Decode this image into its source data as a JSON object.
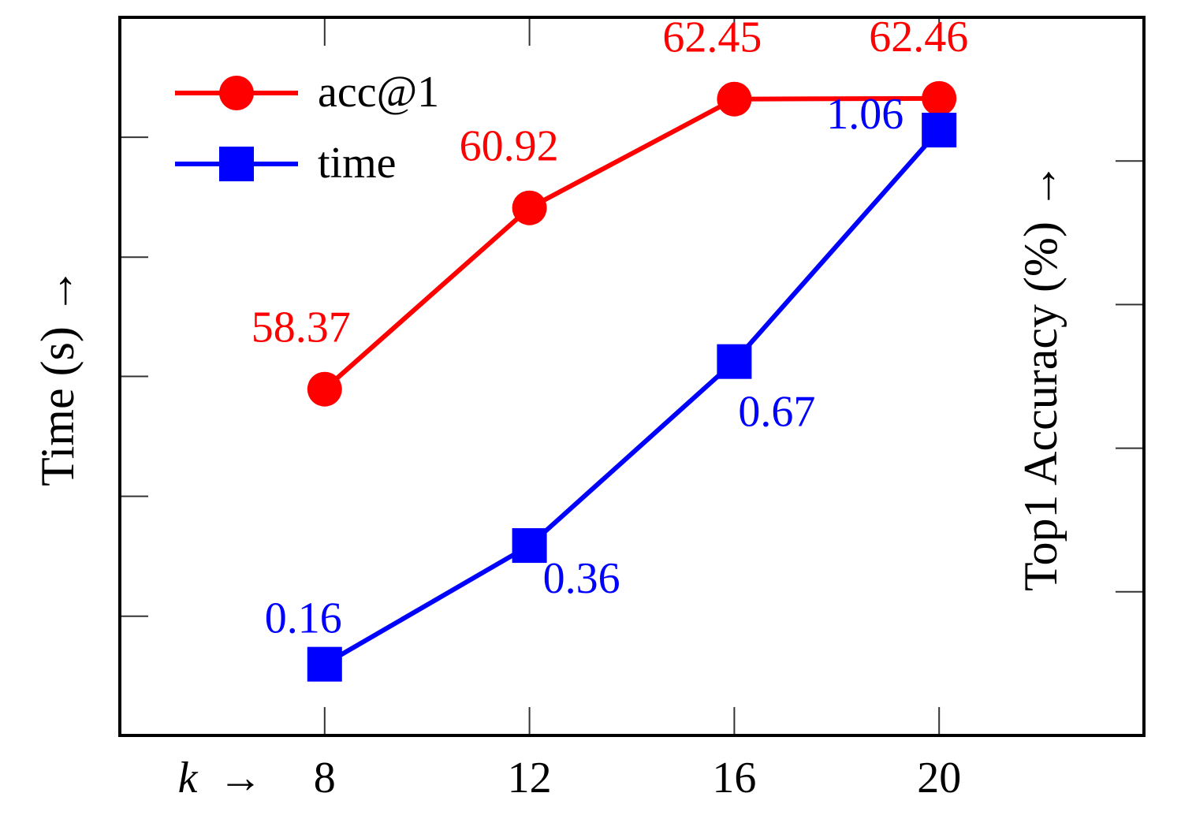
{
  "chart_data": {
    "type": "line",
    "x": [
      8,
      12,
      16,
      20
    ],
    "xlabel_var": "k",
    "xlabel_arrow": "→",
    "ylabel_left": "Time (s) →",
    "ylabel_right": "Top1 Accuracy (%) →",
    "xlim": [
      4,
      24
    ],
    "grid": false,
    "legend_position": "top-left",
    "series": [
      {
        "name": "acc@1",
        "axis": "right",
        "color": "#ff0000",
        "marker": "circle",
        "values": [
          58.37,
          60.92,
          62.45,
          62.46
        ],
        "labels": [
          "58.37",
          "60.92",
          "62.45",
          "62.46"
        ],
        "ylim": [
          53.5,
          63.6
        ]
      },
      {
        "name": "time",
        "axis": "left",
        "color": "#0000ff",
        "marker": "square",
        "values": [
          0.16,
          0.36,
          0.67,
          1.06
        ],
        "labels": [
          "0.16",
          "0.36",
          "0.67",
          "1.06"
        ],
        "ylim": [
          0.04,
          1.25
        ]
      }
    ],
    "x_tick_labels": [
      "8",
      "12",
      "16",
      "20"
    ]
  }
}
